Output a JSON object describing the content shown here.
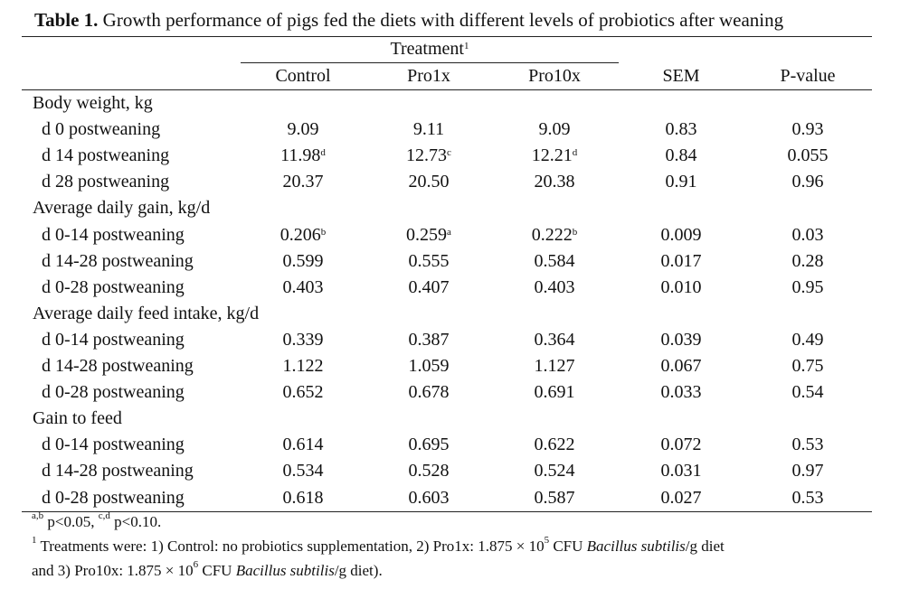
{
  "title": {
    "label": "Table 1.",
    "text": "Growth performance of pigs fed the diets with different levels of probiotics after weaning"
  },
  "treatment_header": {
    "label": "Treatment",
    "sup": "1"
  },
  "columns": [
    "Control",
    "Pro1x",
    "Pro10x",
    "SEM",
    "P-value"
  ],
  "rows": [
    {
      "label": "Body weight, kg",
      "group": true
    },
    {
      "label": "d 0 postweaning",
      "vals": [
        "9.09",
        "9.11",
        "9.09",
        "0.83",
        "0.93"
      ],
      "sups": [
        "",
        "",
        "",
        "",
        ""
      ]
    },
    {
      "label": "d 14 postweaning",
      "vals": [
        "11.98",
        "12.73",
        "12.21",
        "0.84",
        "0.055"
      ],
      "sups": [
        "d",
        "c",
        "d",
        "",
        ""
      ]
    },
    {
      "label": "d 28 postweaning",
      "vals": [
        "20.37",
        "20.50",
        "20.38",
        "0.91",
        "0.96"
      ],
      "sups": [
        "",
        "",
        "",
        "",
        ""
      ]
    },
    {
      "label": "Average daily gain, kg/d",
      "group": true
    },
    {
      "label": "d 0-14 postweaning",
      "vals": [
        "0.206",
        "0.259",
        "0.222",
        "0.009",
        "0.03"
      ],
      "sups": [
        "b",
        "a",
        "b",
        "",
        ""
      ]
    },
    {
      "label": "d 14-28 postweaning",
      "vals": [
        "0.599",
        "0.555",
        "0.584",
        "0.017",
        "0.28"
      ],
      "sups": [
        "",
        "",
        "",
        "",
        ""
      ]
    },
    {
      "label": "d 0-28 postweaning",
      "vals": [
        "0.403",
        "0.407",
        "0.403",
        "0.010",
        "0.95"
      ],
      "sups": [
        "",
        "",
        "",
        "",
        ""
      ]
    },
    {
      "label": "Average daily feed intake, kg/d",
      "group": true
    },
    {
      "label": "d 0-14 postweaning",
      "vals": [
        "0.339",
        "0.387",
        "0.364",
        "0.039",
        "0.49"
      ],
      "sups": [
        "",
        "",
        "",
        "",
        ""
      ]
    },
    {
      "label": "d 14-28 postweaning",
      "vals": [
        "1.122",
        "1.059",
        "1.127",
        "0.067",
        "0.75"
      ],
      "sups": [
        "",
        "",
        "",
        "",
        ""
      ]
    },
    {
      "label": "d 0-28 postweaning",
      "vals": [
        "0.652",
        "0.678",
        "0.691",
        "0.033",
        "0.54"
      ],
      "sups": [
        "",
        "",
        "",
        "",
        ""
      ]
    },
    {
      "label": "Gain to feed",
      "group": true
    },
    {
      "label": "d 0-14 postweaning",
      "vals": [
        "0.614",
        "0.695",
        "0.622",
        "0.072",
        "0.53"
      ],
      "sups": [
        "",
        "",
        "",
        "",
        ""
      ]
    },
    {
      "label": "d 14-28 postweaning",
      "vals": [
        "0.534",
        "0.528",
        "0.524",
        "0.031",
        "0.97"
      ],
      "sups": [
        "",
        "",
        "",
        "",
        ""
      ]
    },
    {
      "label": "d 0-28 postweaning",
      "vals": [
        "0.618",
        "0.603",
        "0.587",
        "0.027",
        "0.53"
      ],
      "sups": [
        "",
        "",
        "",
        "",
        ""
      ]
    }
  ],
  "footnotes": {
    "sig_sup_1": "a,b",
    "sig_text_1": " p<0.05, ",
    "sig_sup_2": "c,d",
    "sig_text_2": " p<0.10.",
    "fn1_sup": "1",
    "fn1_line1_a": " Treatments were: 1) Control: no probiotics supplementation, 2) Pro1x: 1.875 × 10",
    "fn1_line1_exp": "5",
    "fn1_line1_b": " CFU ",
    "fn1_line1_species": "Bacillus subtilis",
    "fn1_line1_c": "/g diet",
    "fn1_line2_a": "and 3) Pro10x: 1.875 × 10",
    "fn1_line2_exp": "6",
    "fn1_line2_b": " CFU ",
    "fn1_line2_species": "Bacillus subtilis",
    "fn1_line2_c": "/g diet)."
  }
}
